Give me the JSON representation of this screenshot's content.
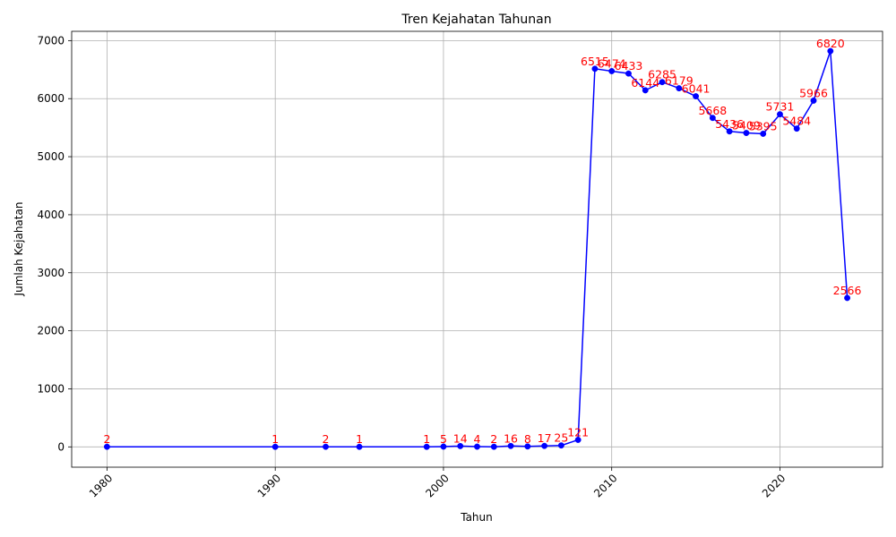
{
  "chart_data": {
    "type": "line",
    "title": "Tren Kejahatan Tahunan",
    "xlabel": "Tahun",
    "ylabel": "Jumlah Kejahatan",
    "xlim": [
      1977.9,
      2026.1
    ],
    "ylim": [
      -350,
      7160
    ],
    "x_ticks": [
      1980,
      1990,
      2000,
      2010,
      2020
    ],
    "y_ticks": [
      0,
      1000,
      2000,
      3000,
      4000,
      5000,
      6000,
      7000
    ],
    "grid": true,
    "legend": "none",
    "colors": {
      "line": "#0000ff",
      "marker": "#0000ff",
      "labels": "#ff0000"
    },
    "series": [
      {
        "x": [
          1980,
          1990,
          1993,
          1995,
          1999,
          2000,
          2001,
          2002,
          2003,
          2004,
          2005,
          2006,
          2007,
          2008,
          2009,
          2010,
          2011,
          2012,
          2013,
          2014,
          2015,
          2016,
          2017,
          2018,
          2019,
          2020,
          2021,
          2022,
          2023,
          2024
        ],
        "y": [
          2,
          1,
          2,
          1,
          1,
          5,
          14,
          4,
          2,
          16,
          8,
          17,
          25,
          121,
          6515,
          6474,
          6433,
          6144,
          6285,
          6179,
          6041,
          5668,
          5436,
          5409,
          5395,
          5731,
          5484,
          5966,
          6820,
          2566
        ]
      }
    ]
  }
}
